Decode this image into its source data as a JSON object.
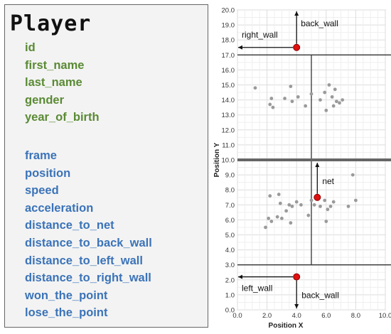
{
  "entity": {
    "title": "Player",
    "personal_attributes": [
      "id",
      "first_name",
      "last_name",
      "gender",
      "year_of_birth"
    ],
    "tracking_attributes": [
      "frame",
      "position",
      "speed",
      "acceleration",
      "distance_to_net",
      "distance_to_back_wall",
      "distance_to_left_wall",
      "distance_to_right_wall",
      "won_the_point",
      "lose_the_point"
    ],
    "colors": {
      "personal": "#5a8a34",
      "tracking": "#3b73b8"
    }
  },
  "chart_data": {
    "type": "scatter",
    "xlabel": "Position X",
    "ylabel": "Position Y",
    "xlim": [
      0,
      10
    ],
    "ylim": [
      0,
      20
    ],
    "x_ticks": [
      "0.0",
      "2.0",
      "4.0",
      "6.0",
      "8.0",
      "10.0"
    ],
    "y_ticks": [
      "0.0",
      "1.0",
      "2.0",
      "3.0",
      "4.0",
      "5.0",
      "6.0",
      "7.0",
      "8.0",
      "9.0",
      "10.0",
      "11.0",
      "12.0",
      "13.0",
      "14.0",
      "15.0",
      "16.0",
      "17.0",
      "18.0",
      "19.0",
      "20.0"
    ],
    "grid": true,
    "court_lines": {
      "net_y": 10,
      "service_lines_y": [
        3,
        17
      ],
      "center_line_x": 5
    },
    "points": [
      {
        "x": 1.2,
        "y": 14.8
      },
      {
        "x": 2.2,
        "y": 13.7
      },
      {
        "x": 2.3,
        "y": 14.1
      },
      {
        "x": 2.4,
        "y": 13.5
      },
      {
        "x": 3.2,
        "y": 14.1
      },
      {
        "x": 3.6,
        "y": 14.9
      },
      {
        "x": 3.7,
        "y": 13.9
      },
      {
        "x": 4.1,
        "y": 14.2
      },
      {
        "x": 4.6,
        "y": 13.6
      },
      {
        "x": 5.0,
        "y": 14.4
      },
      {
        "x": 5.6,
        "y": 14.0
      },
      {
        "x": 5.9,
        "y": 14.5
      },
      {
        "x": 6.0,
        "y": 13.3
      },
      {
        "x": 6.2,
        "y": 15.0
      },
      {
        "x": 6.4,
        "y": 14.2
      },
      {
        "x": 6.5,
        "y": 13.6
      },
      {
        "x": 6.6,
        "y": 14.7
      },
      {
        "x": 6.7,
        "y": 13.9
      },
      {
        "x": 6.9,
        "y": 13.8
      },
      {
        "x": 7.1,
        "y": 14.0
      },
      {
        "x": 1.9,
        "y": 5.5
      },
      {
        "x": 2.1,
        "y": 6.1
      },
      {
        "x": 2.2,
        "y": 7.6
      },
      {
        "x": 2.3,
        "y": 5.9
      },
      {
        "x": 2.7,
        "y": 6.2
      },
      {
        "x": 2.8,
        "y": 7.7
      },
      {
        "x": 2.9,
        "y": 7.1
      },
      {
        "x": 3.0,
        "y": 6.1
      },
      {
        "x": 3.3,
        "y": 6.6
      },
      {
        "x": 3.5,
        "y": 7.0
      },
      {
        "x": 3.6,
        "y": 5.8
      },
      {
        "x": 3.7,
        "y": 6.9
      },
      {
        "x": 4.0,
        "y": 7.2
      },
      {
        "x": 4.3,
        "y": 7.0
      },
      {
        "x": 4.8,
        "y": 6.3
      },
      {
        "x": 5.0,
        "y": 7.3
      },
      {
        "x": 5.2,
        "y": 7.0
      },
      {
        "x": 5.6,
        "y": 6.9
      },
      {
        "x": 5.9,
        "y": 7.3
      },
      {
        "x": 6.0,
        "y": 5.9
      },
      {
        "x": 6.1,
        "y": 6.7
      },
      {
        "x": 6.3,
        "y": 6.9
      },
      {
        "x": 6.5,
        "y": 7.2
      },
      {
        "x": 7.5,
        "y": 6.9
      },
      {
        "x": 7.8,
        "y": 9.0
      },
      {
        "x": 8.0,
        "y": 7.3
      }
    ],
    "players": [
      {
        "x": 4.0,
        "y": 17.5,
        "labels": [
          "right_wall",
          "back_wall"
        ]
      },
      {
        "x": 5.4,
        "y": 7.5,
        "labels": [
          "net"
        ]
      },
      {
        "x": 4.0,
        "y": 2.2,
        "labels": [
          "left_wall",
          "back_wall"
        ]
      }
    ],
    "annotations": [
      "right_wall",
      "back_wall",
      "net",
      "left_wall",
      "back_wall"
    ]
  }
}
